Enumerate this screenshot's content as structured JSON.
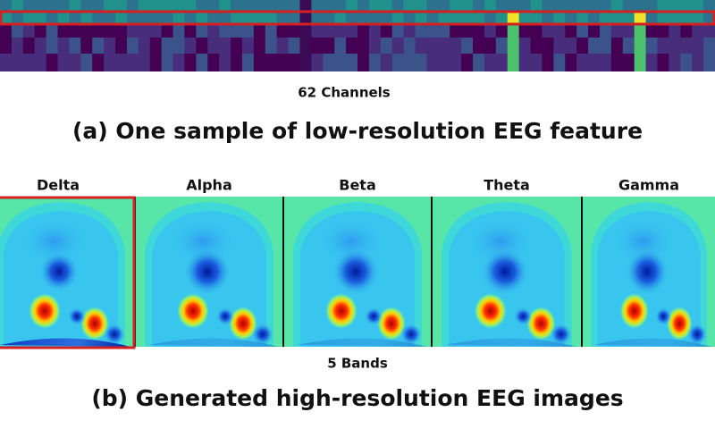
{
  "top": {
    "axis_label": "62 Channels",
    "caption": "(a) One sample of low-resolution EEG feature"
  },
  "bottom": {
    "bands": [
      "Delta",
      "Alpha",
      "Beta",
      "Theta",
      "Gamma"
    ],
    "axis_label": "5 Bands",
    "caption": "(b) Generated high-resolution EEG images"
  }
}
